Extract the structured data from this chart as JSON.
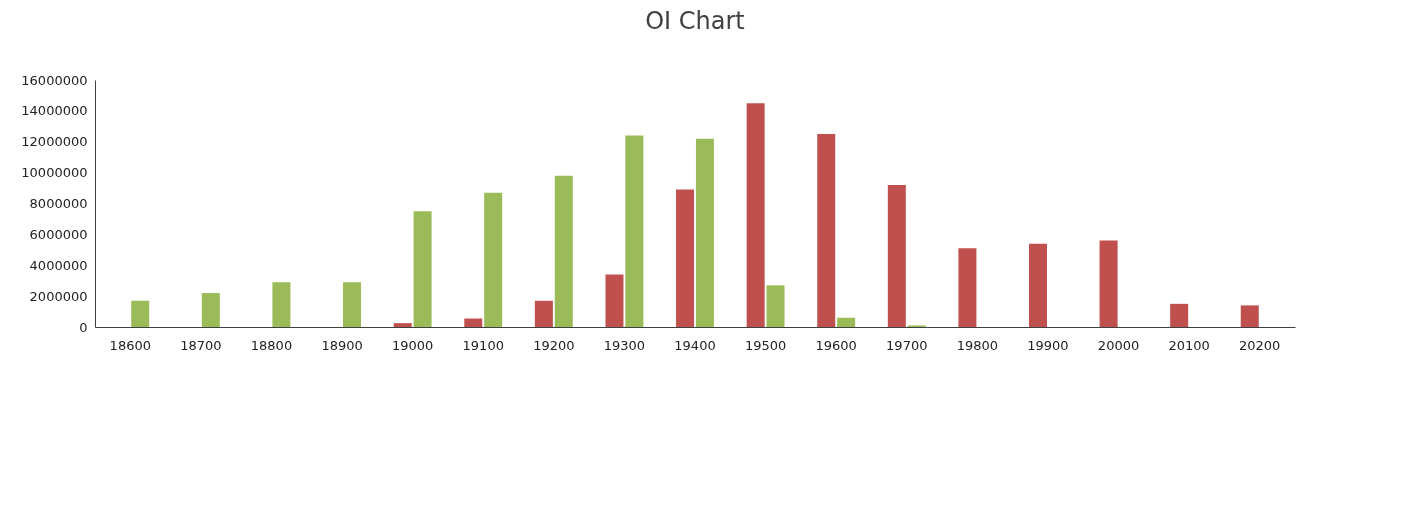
{
  "chart_data": {
    "type": "bar",
    "title": "OI Chart",
    "categories": [
      "18600",
      "18700",
      "18800",
      "18900",
      "19000",
      "19100",
      "19200",
      "19300",
      "19400",
      "19500",
      "19600",
      "19700",
      "19800",
      "19900",
      "20000",
      "20100",
      "20200"
    ],
    "series": [
      {
        "color": "#c0504d",
        "values": [
          null,
          null,
          null,
          null,
          250000,
          550000,
          1700000,
          3400000,
          8900000,
          14500000,
          12500000,
          9200000,
          5100000,
          5400000,
          5600000,
          1500000,
          1400000
        ]
      },
      {
        "color": "#9bbb59",
        "values": [
          1700000,
          2200000,
          2900000,
          2900000,
          7500000,
          8700000,
          9800000,
          12400000,
          12200000,
          2700000,
          600000,
          100000,
          null,
          null,
          null,
          null,
          null
        ]
      }
    ],
    "ylim": [
      0,
      16000000
    ],
    "yticks": [
      0,
      2000000,
      4000000,
      6000000,
      8000000,
      10000000,
      12000000,
      14000000,
      16000000
    ],
    "grid": false,
    "legend": false
  }
}
